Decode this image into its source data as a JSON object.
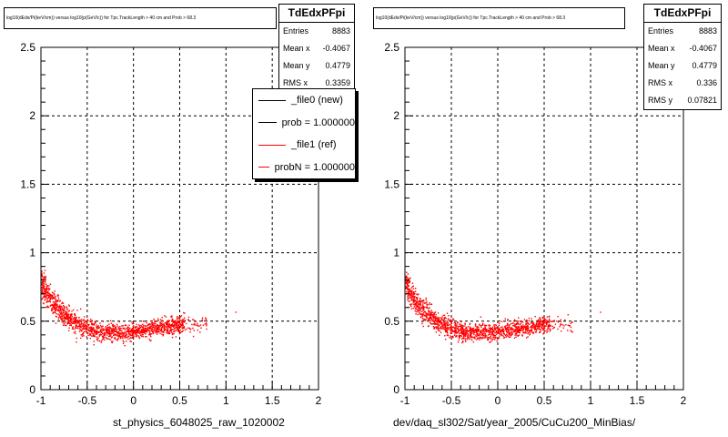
{
  "colors": {
    "points": "#ff0000",
    "ref_line": "#ff0000",
    "new_line": "#000000"
  },
  "panels": [
    {
      "title": "log10(dEdx/Pi(keV/cm)) versus log10(p(GeV/c)) for Tpc.TrackLength > 40 cm and Prob > 68.3",
      "stats": {
        "name": "TdEdxPFpi",
        "rows": [
          {
            "label": "Entries",
            "value": "8883"
          },
          {
            "label": "Mean x",
            "value": "-0.4067"
          },
          {
            "label": "Mean y",
            "value": "0.4779"
          },
          {
            "label": "RMS x",
            "value": "0.3359"
          }
        ]
      },
      "legend": [
        {
          "label": "_file0 (new)",
          "color": "#000000"
        },
        {
          "label": "prob = 1.000000",
          "color": "#000000"
        },
        {
          "label": "_file1 (ref)",
          "color": "#ff0000"
        },
        {
          "label": "probN = 1.000000",
          "color": "#ff0000"
        }
      ],
      "xtitle": "st_physics_6048025_raw_1020002"
    },
    {
      "title": "log10(dEdx/Pi(keV/cm)) versus log10(p(GeV/c)) for Tpc.TrackLength > 40 cm and Prob > 68.3",
      "stats": {
        "name": "TdEdxPFpi",
        "rows": [
          {
            "label": "Entries",
            "value": "8883"
          },
          {
            "label": "Mean x",
            "value": "-0.4067"
          },
          {
            "label": "Mean y",
            "value": "0.4779"
          },
          {
            "label": "RMS x",
            "value": "0.336"
          },
          {
            "label": "RMS y",
            "value": "0.07821"
          }
        ]
      },
      "xtitle": "dev/daq_sl302/Sat/year_2005/CuCu200_MinBias/"
    }
  ],
  "chart_data": [
    {
      "type": "scatter",
      "title": "log10(dEdx/Pi(keV/cm)) versus log10(p(GeV/c)) for Tpc.TrackLength > 40 cm and Prob > 68.3",
      "xlabel": "st_physics_6048025_raw_1020002",
      "ylabel": "",
      "xlim": [
        -1,
        2
      ],
      "ylim": [
        0,
        2.5
      ],
      "xticks": [
        -1,
        -0.5,
        0,
        0.5,
        1,
        1.5,
        2
      ],
      "xtick_labels": [
        "-1",
        "-0.5",
        "0",
        "0.5",
        "1",
        "1.5",
        "2"
      ],
      "yticks": [
        0,
        0.5,
        1,
        1.5,
        2,
        2.5
      ],
      "ytick_labels": [
        "0",
        "0.5",
        "1",
        "1.5",
        "2",
        "2.5"
      ],
      "grid": true,
      "band": {
        "x": [
          -1.0,
          -0.9,
          -0.8,
          -0.7,
          -0.6,
          -0.5,
          -0.4,
          -0.3,
          -0.2,
          -0.1,
          0.0,
          0.1,
          0.2,
          0.3,
          0.4,
          0.5
        ],
        "y": [
          0.78,
          0.66,
          0.58,
          0.52,
          0.48,
          0.45,
          0.43,
          0.42,
          0.42,
          0.42,
          0.43,
          0.44,
          0.45,
          0.46,
          0.47,
          0.48
        ]
      }
    },
    {
      "type": "scatter",
      "title": "log10(dEdx/Pi(keV/cm)) versus log10(p(GeV/c)) for Tpc.TrackLength > 40 cm and Prob > 68.3",
      "xlabel": "dev/daq_sl302/Sat/year_2005/CuCu200_MinBias/",
      "ylabel": "",
      "xlim": [
        -1,
        2
      ],
      "ylim": [
        0,
        2.5
      ],
      "xticks": [
        -1,
        -0.5,
        0,
        0.5,
        1,
        1.5,
        2
      ],
      "xtick_labels": [
        "-1",
        "-0.5",
        "0",
        "0.5",
        "1",
        "1.5",
        "2"
      ],
      "yticks": [
        0,
        0.5,
        1,
        1.5,
        2,
        2.5
      ],
      "ytick_labels": [
        "0",
        "0.5",
        "1",
        "1.5",
        "2",
        "2.5"
      ],
      "grid": true,
      "band": {
        "x": [
          -1.0,
          -0.9,
          -0.8,
          -0.7,
          -0.6,
          -0.5,
          -0.4,
          -0.3,
          -0.2,
          -0.1,
          0.0,
          0.1,
          0.2,
          0.3,
          0.4,
          0.5
        ],
        "y": [
          0.78,
          0.66,
          0.58,
          0.52,
          0.48,
          0.45,
          0.43,
          0.42,
          0.42,
          0.42,
          0.43,
          0.44,
          0.45,
          0.46,
          0.47,
          0.48
        ]
      }
    }
  ]
}
